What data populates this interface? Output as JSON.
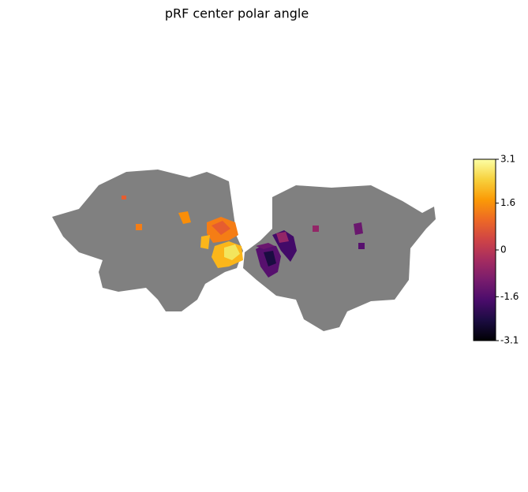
{
  "chart_data": {
    "type": "flatmap",
    "title": "pRF center polar angle",
    "colormap": "inferno",
    "clim": [
      -3.1,
      3.1
    ],
    "cticks": [
      3.1,
      1.6,
      0,
      -1.6,
      -3.1
    ]
  }
}
